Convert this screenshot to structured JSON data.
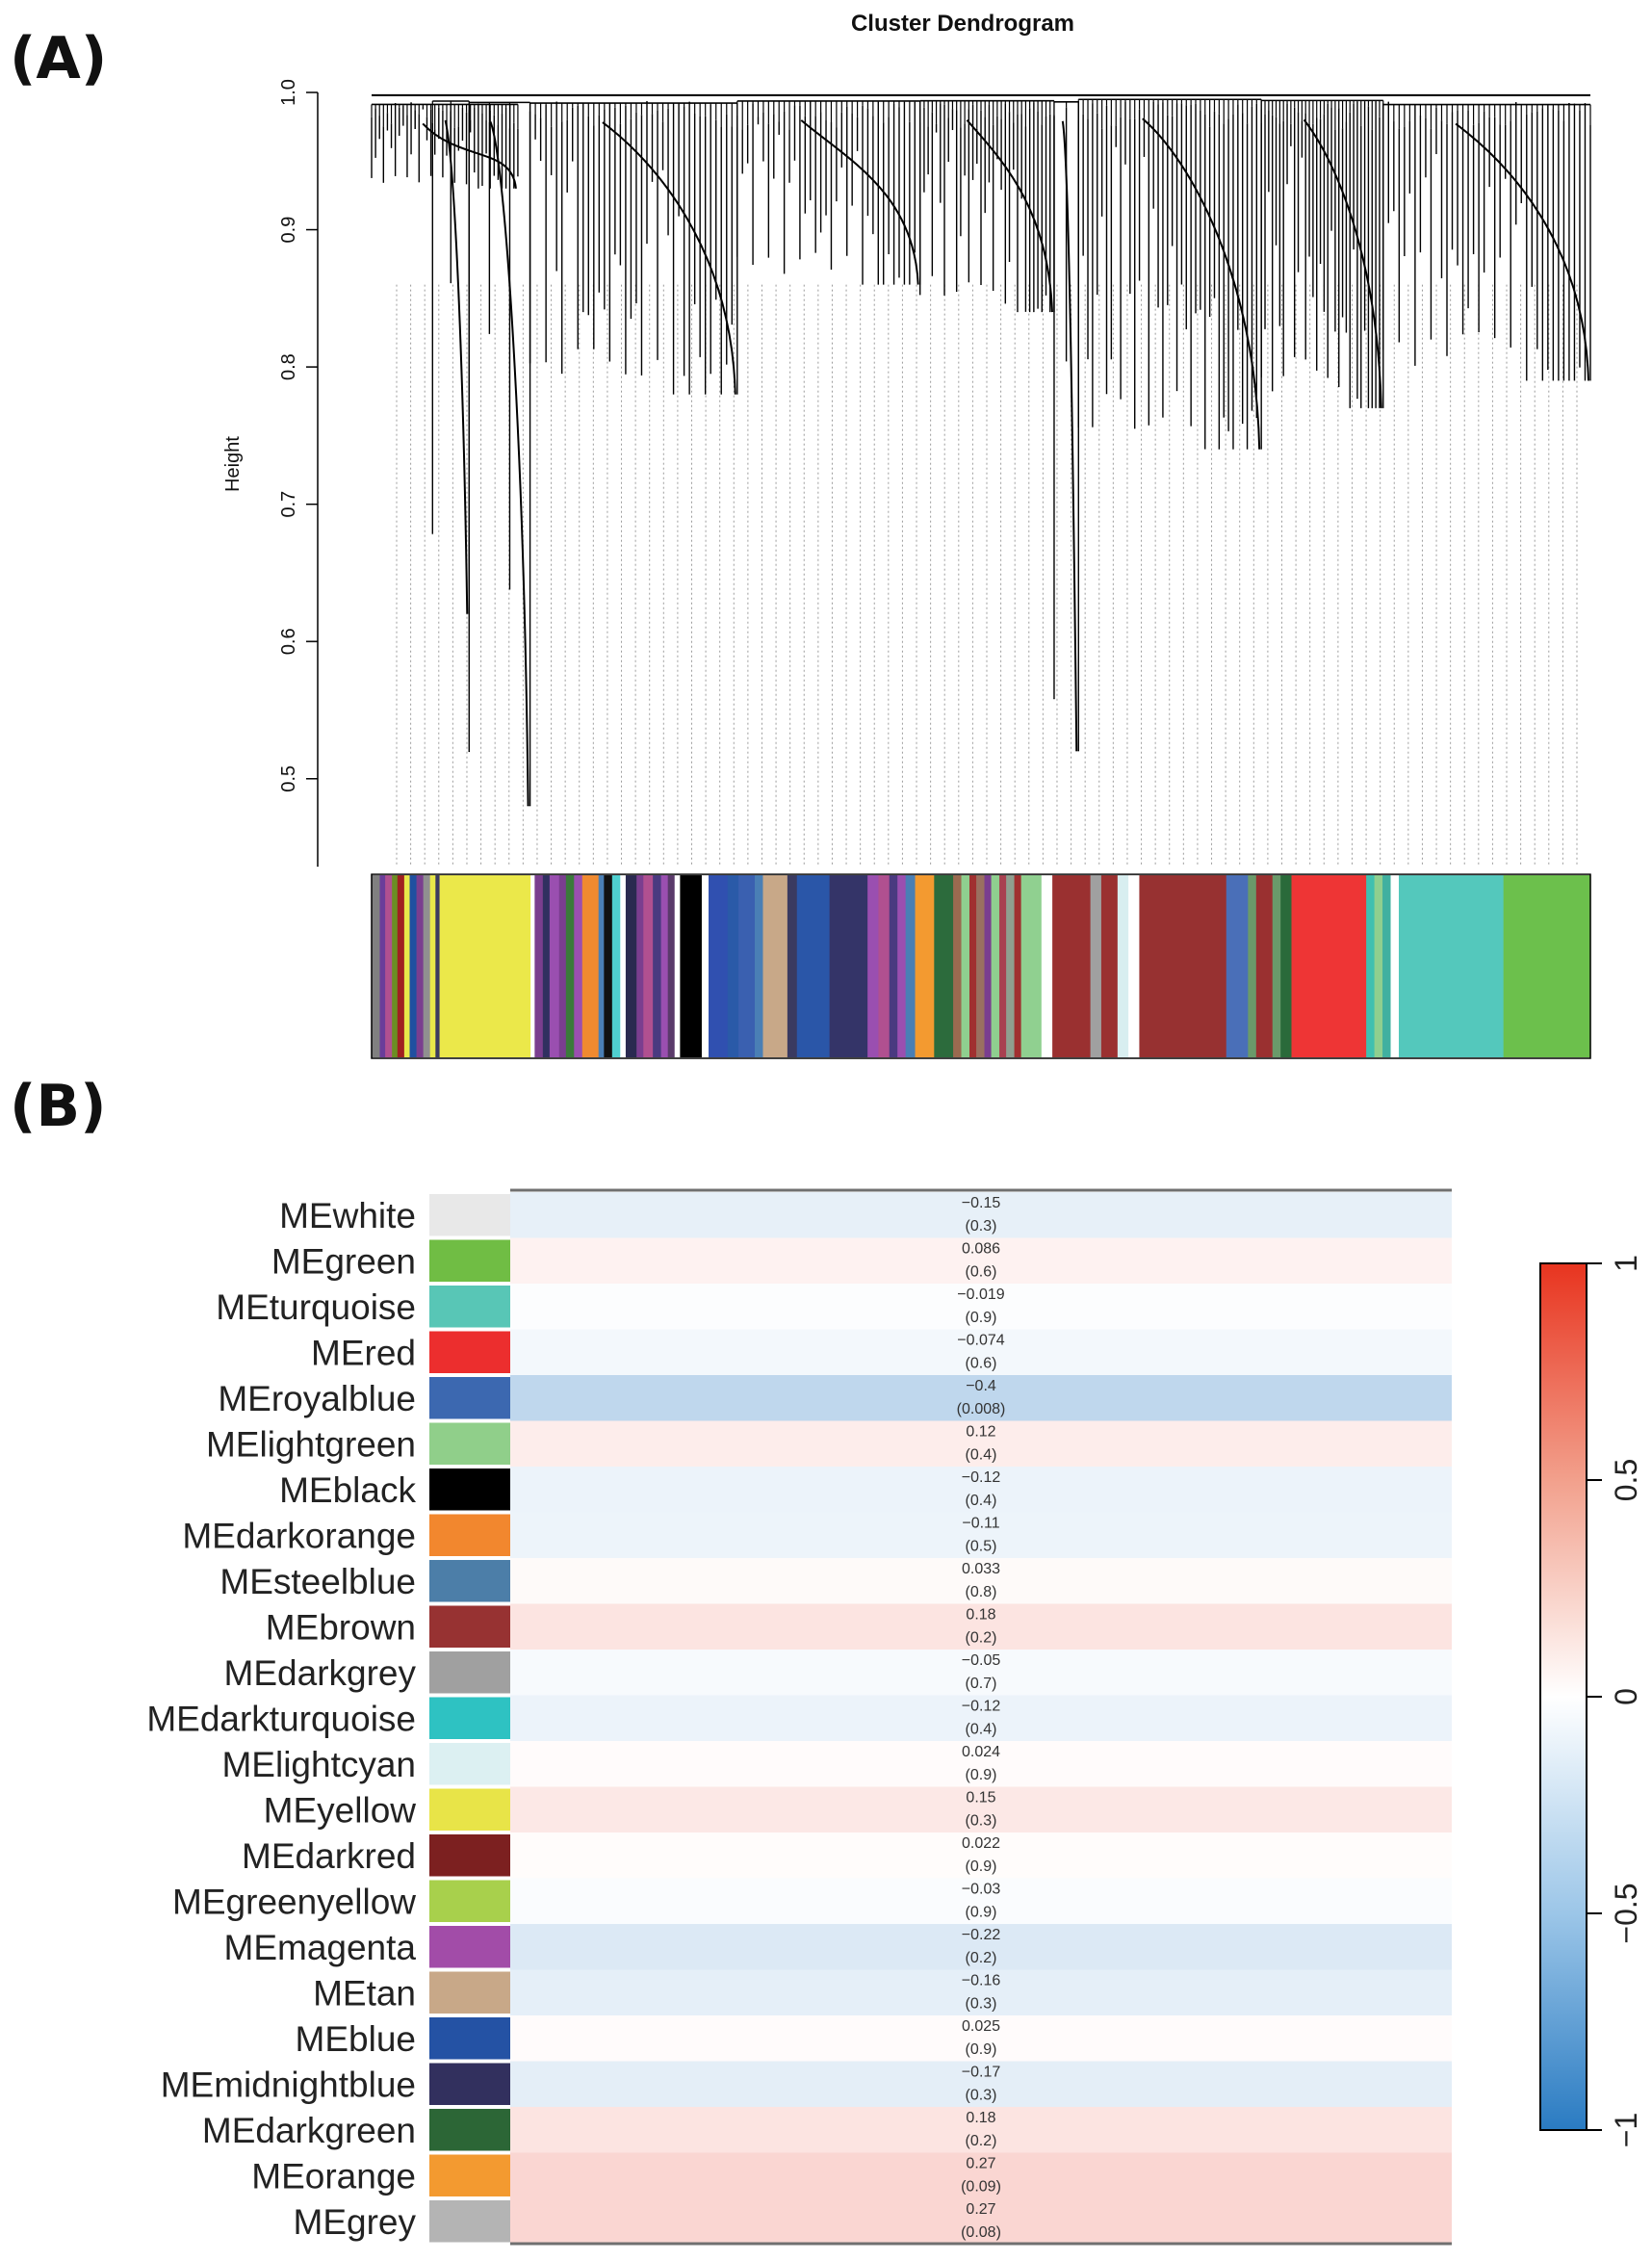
{
  "panels": {
    "a_label": "(A)",
    "b_label": "(B)"
  },
  "chart_data": [
    {
      "type": "dendrogram",
      "title": "Cluster Dendrogram",
      "ylabel": "Height",
      "ylim": [
        0.45,
        1.0
      ],
      "yticks": [
        "0.5",
        "0.6",
        "0.7",
        "0.8",
        "0.9",
        "1.0"
      ],
      "grid": false,
      "clusters": [
        {
          "start": 0.0,
          "end": 0.12,
          "depth": 0.93,
          "branches": 38
        },
        {
          "start": 0.05,
          "end": 0.08,
          "depth": 0.62,
          "branches": 3
        },
        {
          "start": 0.08,
          "end": 0.13,
          "depth": 0.48,
          "branches": 4
        },
        {
          "start": 0.13,
          "end": 0.3,
          "depth": 0.78,
          "branches": 40
        },
        {
          "start": 0.3,
          "end": 0.45,
          "depth": 0.86,
          "branches": 36
        },
        {
          "start": 0.45,
          "end": 0.56,
          "depth": 0.84,
          "branches": 34
        },
        {
          "start": 0.56,
          "end": 0.58,
          "depth": 0.52,
          "branches": 3
        },
        {
          "start": 0.58,
          "end": 0.73,
          "depth": 0.74,
          "branches": 40
        },
        {
          "start": 0.73,
          "end": 0.83,
          "depth": 0.77,
          "branches": 34
        },
        {
          "start": 0.83,
          "end": 1.0,
          "depth": 0.79,
          "branches": 40
        }
      ],
      "color_bar": [
        {
          "w": 0.006,
          "c": "#808080"
        },
        {
          "w": 0.004,
          "c": "#6a3d9a"
        },
        {
          "w": 0.005,
          "c": "#b05090"
        },
        {
          "w": 0.004,
          "c": "#6b8e23"
        },
        {
          "w": 0.005,
          "c": "#a02020"
        },
        {
          "w": 0.004,
          "c": "#e8e84a"
        },
        {
          "w": 0.005,
          "c": "#2050a0"
        },
        {
          "w": 0.005,
          "c": "#7a3e8f"
        },
        {
          "w": 0.005,
          "c": "#909090"
        },
        {
          "w": 0.004,
          "c": "#e8e84a"
        },
        {
          "w": 0.003,
          "c": "#3a3a60"
        },
        {
          "w": 0.067,
          "c": "#ebe84a"
        },
        {
          "w": 0.003,
          "c": "#ffffff"
        },
        {
          "w": 0.006,
          "c": "#7a3e8f"
        },
        {
          "w": 0.005,
          "c": "#303060"
        },
        {
          "w": 0.007,
          "c": "#9a4fb0"
        },
        {
          "w": 0.005,
          "c": "#7a3e8f"
        },
        {
          "w": 0.006,
          "c": "#3a7a3a"
        },
        {
          "w": 0.006,
          "c": "#9a4fb0"
        },
        {
          "w": 0.012,
          "c": "#f08a30"
        },
        {
          "w": 0.004,
          "c": "#4a7fb5"
        },
        {
          "w": 0.006,
          "c": "#111111"
        },
        {
          "w": 0.006,
          "c": "#4fd0d0"
        },
        {
          "w": 0.004,
          "c": "#ffffff"
        },
        {
          "w": 0.008,
          "c": "#2a2a50"
        },
        {
          "w": 0.005,
          "c": "#7a3e8f"
        },
        {
          "w": 0.007,
          "c": "#b05090"
        },
        {
          "w": 0.006,
          "c": "#4a3a80"
        },
        {
          "w": 0.005,
          "c": "#9a4fb0"
        },
        {
          "w": 0.005,
          "c": "#5a3a6a"
        },
        {
          "w": 0.004,
          "c": "#ffffff"
        },
        {
          "w": 0.016,
          "c": "#000000"
        },
        {
          "w": 0.005,
          "c": "#ffffff"
        },
        {
          "w": 0.014,
          "c": "#3050b0"
        },
        {
          "w": 0.008,
          "c": "#2a5aa8"
        },
        {
          "w": 0.012,
          "c": "#3a60b0"
        },
        {
          "w": 0.006,
          "c": "#4a7fb5"
        },
        {
          "w": 0.018,
          "c": "#c8a888"
        },
        {
          "w": 0.007,
          "c": "#3a3a60"
        },
        {
          "w": 0.024,
          "c": "#2a56a8"
        },
        {
          "w": 0.028,
          "c": "#343468"
        },
        {
          "w": 0.008,
          "c": "#9a4fb0"
        },
        {
          "w": 0.008,
          "c": "#b05090"
        },
        {
          "w": 0.006,
          "c": "#4a3a80"
        },
        {
          "w": 0.006,
          "c": "#9a4fb0"
        },
        {
          "w": 0.007,
          "c": "#4a7fb5"
        },
        {
          "w": 0.014,
          "c": "#f39a30"
        },
        {
          "w": 0.014,
          "c": "#2c6b3c"
        },
        {
          "w": 0.006,
          "c": "#9a6a50"
        },
        {
          "w": 0.006,
          "c": "#8fcf8f"
        },
        {
          "w": 0.005,
          "c": "#a03030"
        },
        {
          "w": 0.006,
          "c": "#9a7060"
        },
        {
          "w": 0.005,
          "c": "#7a3e8f"
        },
        {
          "w": 0.006,
          "c": "#8fcf8f"
        },
        {
          "w": 0.005,
          "c": "#a84050"
        },
        {
          "w": 0.006,
          "c": "#8f9f8f"
        },
        {
          "w": 0.005,
          "c": "#a03030"
        },
        {
          "w": 0.015,
          "c": "#90d090"
        },
        {
          "w": 0.008,
          "c": "#ffffff"
        },
        {
          "w": 0.028,
          "c": "#9a3030"
        },
        {
          "w": 0.008,
          "c": "#a0a0a0"
        },
        {
          "w": 0.012,
          "c": "#9a3030"
        },
        {
          "w": 0.008,
          "c": "#d8eef0"
        },
        {
          "w": 0.008,
          "c": "#ffffff"
        },
        {
          "w": 0.064,
          "c": "#973131"
        },
        {
          "w": 0.016,
          "c": "#4a6fb8"
        },
        {
          "w": 0.006,
          "c": "#6a9a6a"
        },
        {
          "w": 0.012,
          "c": "#9a3030"
        },
        {
          "w": 0.006,
          "c": "#6a9a6a"
        },
        {
          "w": 0.008,
          "c": "#2a6a3a"
        },
        {
          "w": 0.055,
          "c": "#ee3535"
        },
        {
          "w": 0.006,
          "c": "#40c0b0"
        },
        {
          "w": 0.006,
          "c": "#8fcf8f"
        },
        {
          "w": 0.006,
          "c": "#40b0a0"
        },
        {
          "w": 0.006,
          "c": "#ffffff"
        },
        {
          "w": 0.077,
          "c": "#54c8bc"
        },
        {
          "w": 0.064,
          "c": "#6cc04c"
        }
      ]
    },
    {
      "type": "heatmap",
      "title": "",
      "rows": [
        {
          "label": "MEwhite",
          "color": "#e8e8e8",
          "value": -0.15,
          "value_text": "−0.15",
          "p_text": "(0.3)"
        },
        {
          "label": "MEgreen",
          "color": "#70bd44",
          "value": 0.086,
          "value_text": "0.086",
          "p_text": "(0.6)"
        },
        {
          "label": "MEturquoise",
          "color": "#58c6b6",
          "value": -0.019,
          "value_text": "−0.019",
          "p_text": "(0.9)"
        },
        {
          "label": "MEred",
          "color": "#ec2e2e",
          "value": -0.074,
          "value_text": "−0.074",
          "p_text": "(0.6)"
        },
        {
          "label": "MEroyalblue",
          "color": "#3c68b0",
          "value": -0.4,
          "value_text": "−0.4",
          "p_text": "(0.008)"
        },
        {
          "label": "MElightgreen",
          "color": "#90cf8a",
          "value": 0.12,
          "value_text": "0.12",
          "p_text": "(0.4)"
        },
        {
          "label": "MEblack",
          "color": "#000000",
          "value": -0.12,
          "value_text": "−0.12",
          "p_text": "(0.4)"
        },
        {
          "label": "MEdarkorange",
          "color": "#f2872e",
          "value": -0.11,
          "value_text": "−0.11",
          "p_text": "(0.5)"
        },
        {
          "label": "MEsteelblue",
          "color": "#4c7ea8",
          "value": 0.033,
          "value_text": "0.033",
          "p_text": "(0.8)"
        },
        {
          "label": "MEbrown",
          "color": "#973232",
          "value": 0.18,
          "value_text": "0.18",
          "p_text": "(0.2)"
        },
        {
          "label": "MEdarkgrey",
          "color": "#a0a0a0",
          "value": -0.05,
          "value_text": "−0.05",
          "p_text": "(0.7)"
        },
        {
          "label": "MEdarkturquoise",
          "color": "#2ec2c2",
          "value": -0.12,
          "value_text": "−0.12",
          "p_text": "(0.4)"
        },
        {
          "label": "MElightcyan",
          "color": "#dcf0f2",
          "value": 0.024,
          "value_text": "0.024",
          "p_text": "(0.9)"
        },
        {
          "label": "MEyellow",
          "color": "#e8e448",
          "value": 0.15,
          "value_text": "0.15",
          "p_text": "(0.3)"
        },
        {
          "label": "MEdarkred",
          "color": "#7c2020",
          "value": 0.022,
          "value_text": "0.022",
          "p_text": "(0.9)"
        },
        {
          "label": "MEgreenyellow",
          "color": "#a8d04c",
          "value": -0.03,
          "value_text": "−0.03",
          "p_text": "(0.9)"
        },
        {
          "label": "MEmagenta",
          "color": "#a24ca8",
          "value": -0.22,
          "value_text": "−0.22",
          "p_text": "(0.2)"
        },
        {
          "label": "MEtan",
          "color": "#c8a888",
          "value": -0.16,
          "value_text": "−0.16",
          "p_text": "(0.3)"
        },
        {
          "label": "MEblue",
          "color": "#2452a4",
          "value": 0.025,
          "value_text": "0.025",
          "p_text": "(0.9)"
        },
        {
          "label": "MEmidnightblue",
          "color": "#32305e",
          "value": -0.17,
          "value_text": "−0.17",
          "p_text": "(0.3)"
        },
        {
          "label": "MEdarkgreen",
          "color": "#2c6636",
          "value": 0.18,
          "value_text": "0.18",
          "p_text": "(0.2)"
        },
        {
          "label": "MEorange",
          "color": "#f39a30",
          "value": 0.27,
          "value_text": "0.27",
          "p_text": "(0.09)"
        },
        {
          "label": "MEgrey",
          "color": "#b4b4b4",
          "value": 0.27,
          "value_text": "0.27",
          "p_text": "(0.08)"
        }
      ],
      "color_scale": {
        "range": [
          -1,
          1
        ],
        "ticks": [
          {
            "v": 1,
            "t": "1"
          },
          {
            "v": 0.5,
            "t": "0.5"
          },
          {
            "v": 0,
            "t": "0"
          },
          {
            "v": -0.5,
            "t": "−0.5"
          },
          {
            "v": -1,
            "t": "−1"
          }
        ],
        "neg_color": "#2a7bc2",
        "mid_color": "#ffffff",
        "pos_color": "#e8341f"
      }
    }
  ]
}
